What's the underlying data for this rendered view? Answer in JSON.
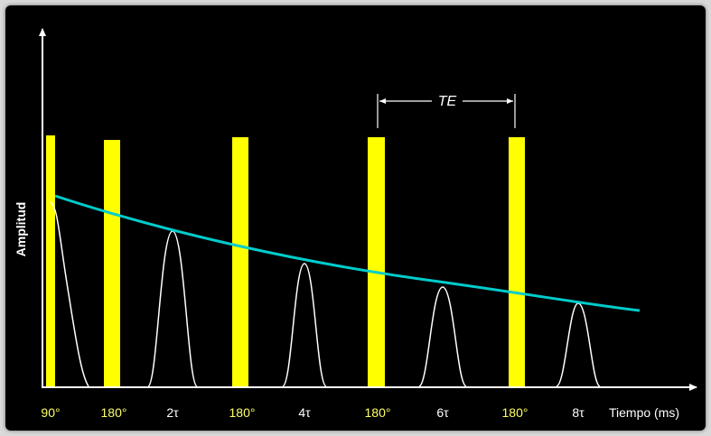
{
  "diagram": {
    "ylabel": "Amplitud",
    "xlabel": "Tiempo (ms)",
    "te_label": "TE",
    "tick_labels": [
      {
        "text": "90°",
        "kind": "pulse"
      },
      {
        "text": "180°",
        "kind": "pulse"
      },
      {
        "text": "2τ",
        "kind": "echo"
      },
      {
        "text": "180°",
        "kind": "pulse"
      },
      {
        "text": "4τ",
        "kind": "echo"
      },
      {
        "text": "180°",
        "kind": "pulse"
      },
      {
        "text": "6τ",
        "kind": "echo"
      },
      {
        "text": "180°",
        "kind": "pulse"
      },
      {
        "text": "8τ",
        "kind": "echo"
      }
    ],
    "colors": {
      "background": "#000000",
      "pulse": "#ffff00",
      "pulse_label": "#ffff66",
      "echo_label": "#ffffff",
      "envelope": "#00cccc",
      "echo": "#ffffff",
      "axis": "#ffffff"
    }
  }
}
